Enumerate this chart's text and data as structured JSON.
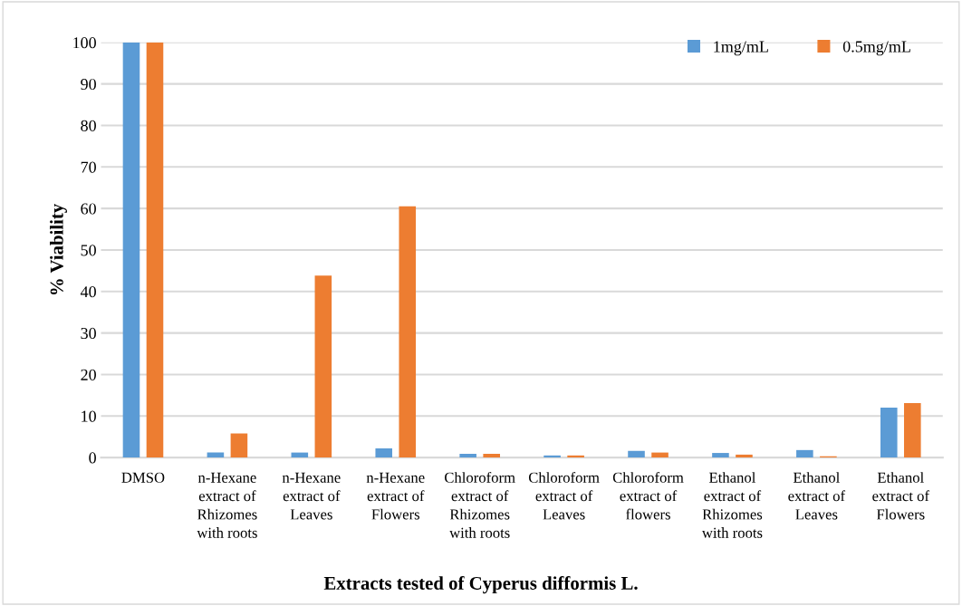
{
  "chart_data": {
    "type": "bar",
    "xlabel": "Extracts tested of Cyperus difformis L.",
    "ylabel": "% Viability",
    "categories": [
      "DMSO",
      "n-Hexane extract of Rhizomes with roots",
      "n-Hexane extract of Leaves",
      "n-Hexane extract of Flowers",
      "Chloroform extract of Rhizomes with roots",
      "Chloroform extract of Leaves",
      "Chloroform extract of flowers",
      "Ethanol extract of Rhizomes with roots",
      "Ethanol extract of Leaves",
      "Ethanol extract of Flowers"
    ],
    "series": [
      {
        "name": "1mg/mL",
        "color": "#5b9bd5",
        "values": [
          100,
          1.2,
          1.2,
          2.2,
          0.9,
          0.5,
          1.6,
          1.1,
          1.8,
          12.0
        ]
      },
      {
        "name": "0.5mg/mL",
        "color": "#ed7d31",
        "values": [
          100,
          5.8,
          43.8,
          60.5,
          0.9,
          0.5,
          1.2,
          0.7,
          0.3,
          13.1
        ]
      }
    ],
    "ylim": [
      0,
      100
    ],
    "yticks": [
      0,
      10,
      20,
      30,
      40,
      50,
      60,
      70,
      80,
      90,
      100
    ],
    "grid": "y",
    "legend": "top right"
  }
}
